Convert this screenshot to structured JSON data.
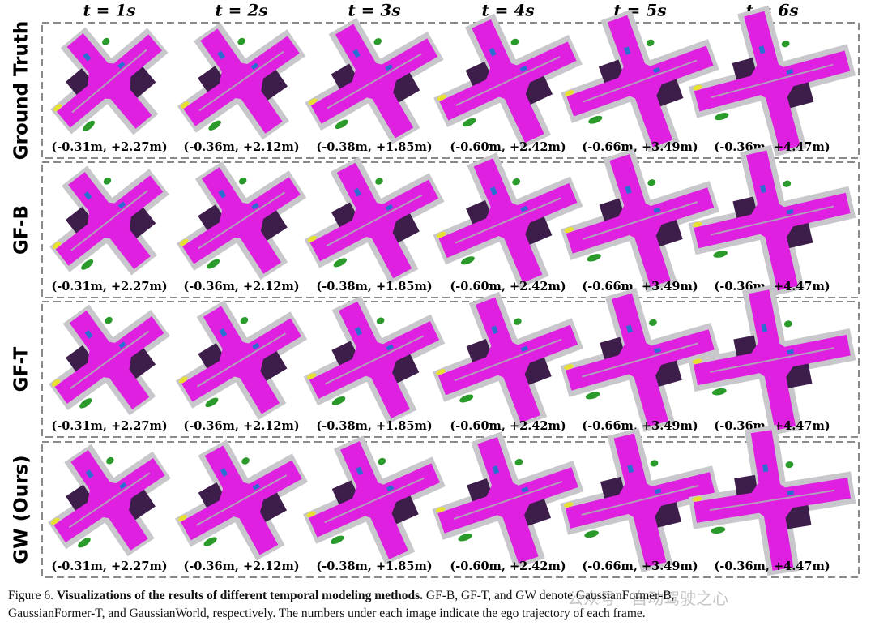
{
  "columns": [
    "t = 1s",
    "t = 2s",
    "t = 3s",
    "t = 4s",
    "t = 5s",
    "t = 6s"
  ],
  "rows": [
    {
      "label": "Ground Truth",
      "captions": [
        "(-0.31m, +2.27m)",
        "(-0.36m, +2.12m)",
        "(-0.38m, +1.85m)",
        "(-0.60m, +2.42m)",
        "(-0.66m, +3.49m)",
        "(-0.36m, +4.47m)"
      ]
    },
    {
      "label": "GF-B",
      "captions": [
        "(-0.31m, +2.27m)",
        "(-0.36m, +2.12m)",
        "(-0.38m, +1.85m)",
        "(-0.60m, +2.42m)",
        "(-0.66m, +3.49m)",
        "(-0.36m, +4.47m)"
      ]
    },
    {
      "label": "GF-T",
      "captions": [
        "(-0.31m, +2.27m)",
        "(-0.36m, +2.12m)",
        "(-0.38m, +1.85m)",
        "(-0.60m, +2.42m)",
        "(-0.66m, +3.49m)",
        "(-0.36m, +4.47m)"
      ]
    },
    {
      "label": "GW (Ours)",
      "captions": [
        "(-0.31m, +2.27m)",
        "(-0.36m, +2.12m)",
        "(-0.38m, +1.85m)",
        "(-0.60m, +2.42m)",
        "(-0.66m, +3.49m)",
        "(-0.36m, +4.47m)"
      ]
    }
  ],
  "caption": {
    "label": "Figure 6.",
    "title": "Visualizations of the results of different temporal modeling methods.",
    "line1": "GF-B, GF-T, and GW denote GaussianFormer-B,",
    "line2": "GaussianFormer-T, and GaussianWorld, respectively. The numbers under each image indicate the ego trajectory of each frame."
  },
  "watermark": "公众号 · 自动驾驶之心"
}
